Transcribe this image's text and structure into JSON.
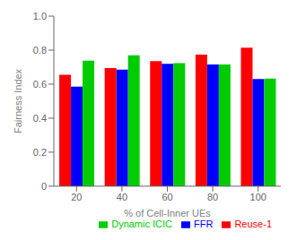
{
  "chart_data": {
    "type": "bar",
    "categories": [
      "20",
      "40",
      "60",
      "80",
      "100"
    ],
    "series": [
      {
        "name": "Reuse-1",
        "color": "#ff0000",
        "values": [
          0.655,
          0.695,
          0.735,
          0.773,
          0.815
        ]
      },
      {
        "name": "FFR",
        "color": "#0000ff",
        "values": [
          0.585,
          0.685,
          0.72,
          0.715,
          0.63
        ]
      },
      {
        "name": "Dynamic ICIC",
        "color": "#00cc00",
        "values": [
          0.738,
          0.77,
          0.723,
          0.716,
          0.633
        ]
      }
    ],
    "xlabel": "% of Cell-Inner UEs",
    "ylabel": "Fairness Index",
    "ylim": [
      0,
      1.0
    ],
    "yticks": [
      0,
      0.2,
      0.4,
      0.6,
      0.8,
      {
        "value": 1.0,
        "label": "1.0"
      }
    ],
    "legend": "lower right",
    "grid": false
  }
}
